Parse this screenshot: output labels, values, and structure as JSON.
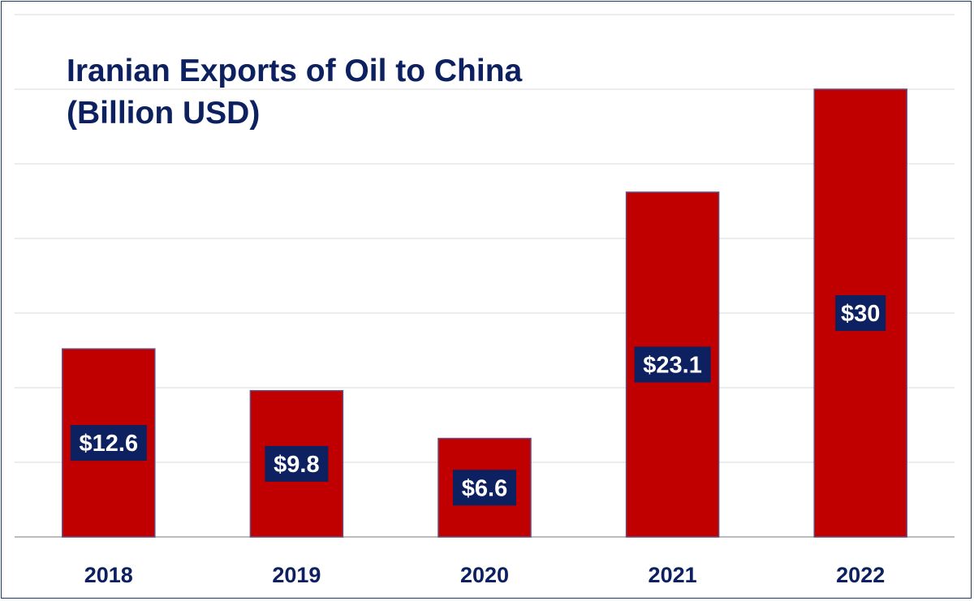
{
  "chart_data": {
    "type": "bar",
    "title_lines": [
      "Iranian Exports of Oil to China",
      "(Billion USD)"
    ],
    "categories": [
      "2018",
      "2019",
      "2020",
      "2021",
      "2022"
    ],
    "values": [
      12.6,
      9.8,
      6.6,
      23.1,
      30
    ],
    "data_labels": [
      "$12.6",
      "$9.8",
      "$6.6",
      "$23.1",
      "$30"
    ],
    "ylim": [
      0,
      35
    ],
    "grid": true,
    "legend": "none",
    "xlabel": "",
    "ylabel": "",
    "colors": {
      "bar": "#c00000",
      "bar_edge": "#6a4a7a",
      "label_box": "#0d2060",
      "title": "#0d2060",
      "grid": "#d9d9d9",
      "axis": "#a6a6a6"
    }
  }
}
